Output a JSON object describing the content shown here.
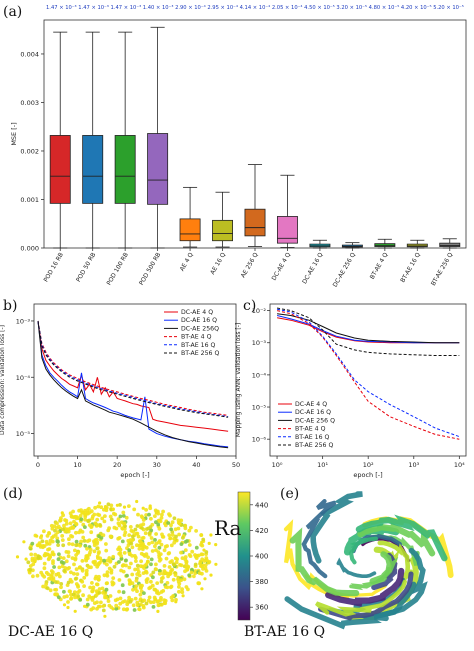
{
  "figure": {
    "panel_labels": [
      "(a)",
      "b)",
      "c)",
      "(d)",
      "(e)"
    ],
    "ra_label": "Ra",
    "d_caption": "DC-AE 16 Q",
    "e_caption": "BT-AE 16 Q"
  },
  "colors": {
    "pod": [
      "#d62728",
      "#1f77b4",
      "#2ca02c",
      "#9467bd"
    ],
    "ae": [
      "#ff7f0e",
      "#bcbd22",
      "#d2691e",
      "#e377c2"
    ],
    "dc": [
      "#17becf",
      "#1f77b4",
      "#2ca02c"
    ],
    "bt": [
      "#bcbd22",
      "#7f7f7f",
      "#d62728"
    ]
  },
  "chart_data": [
    {
      "type": "box",
      "panel": "a",
      "ylabel": "MSE [-]",
      "ylim": [
        0,
        0.0047
      ],
      "yticks": [
        "0.000",
        "0.001",
        "0.002",
        "0.003",
        "0.004"
      ],
      "ytick_values": [
        0,
        0.001,
        0.002,
        0.003,
        0.004
      ],
      "top_annotations": [
        "1.47 × 10⁻³",
        "1.47 × 10⁻³",
        "1.47 × 10⁻³",
        "1.40 × 10⁻³",
        "2.90 × 10⁻⁴",
        "2.95 × 10⁻⁴",
        "4.14 × 10⁻⁴",
        "2.05 × 10⁻⁴",
        "4.50 × 10⁻⁵",
        "3.20 × 10⁻⁵",
        "4.80 × 10⁻⁵",
        "4.20 × 10⁻⁵",
        "5.20 × 10⁻⁵"
      ],
      "categories": [
        "POD 16 RB",
        "POD 50 RB",
        "POD 100 RB",
        "POD 500 RB",
        "AE 4 Q",
        "AE 16 Q",
        "AE 256 Q",
        "DC-AE 4 Q",
        "DC-AE 16 Q",
        "DC-AE 256 Q",
        "BT-AE 4 Q",
        "BT-AE 16 Q",
        "BT-AE 256 Q"
      ],
      "boxes": [
        {
          "min": 0.0,
          "q1": 0.00092,
          "median": 0.00148,
          "q3": 0.00232,
          "max": 0.00445
        },
        {
          "min": 0.0,
          "q1": 0.00092,
          "median": 0.00148,
          "q3": 0.00232,
          "max": 0.00445
        },
        {
          "min": 0.0,
          "q1": 0.00092,
          "median": 0.00148,
          "q3": 0.00232,
          "max": 0.00445
        },
        {
          "min": 0.0,
          "q1": 0.0009,
          "median": 0.0014,
          "q3": 0.00236,
          "max": 0.00455
        },
        {
          "min": 2e-05,
          "q1": 0.00015,
          "median": 0.00029,
          "q3": 0.0006,
          "max": 0.00125
        },
        {
          "min": 2e-05,
          "q1": 0.00015,
          "median": 0.0003,
          "q3": 0.00057,
          "max": 0.00115
        },
        {
          "min": 3e-05,
          "q1": 0.00025,
          "median": 0.00042,
          "q3": 0.0008,
          "max": 0.00172
        },
        {
          "min": 1e-05,
          "q1": 0.0001,
          "median": 0.0002,
          "q3": 0.00065,
          "max": 0.0015
        },
        {
          "min": 0.0,
          "q1": 2.5e-05,
          "median": 4.5e-05,
          "q3": 8e-05,
          "max": 0.00016
        },
        {
          "min": 0.0,
          "q1": 2e-05,
          "median": 3.2e-05,
          "q3": 6e-05,
          "max": 0.00011
        },
        {
          "min": 0.0,
          "q1": 3e-05,
          "median": 4.8e-05,
          "q3": 9e-05,
          "max": 0.00018
        },
        {
          "min": 0.0,
          "q1": 2.5e-05,
          "median": 4.2e-05,
          "q3": 8e-05,
          "max": 0.00016
        },
        {
          "min": 0.0,
          "q1": 3e-05,
          "median": 5.2e-05,
          "q3": 0.0001,
          "max": 0.00019
        }
      ]
    },
    {
      "type": "line",
      "panel": "b",
      "xlabel": "epoch [-]",
      "ylabel": "Data compression: validation loss [-]",
      "xlim": [
        -1,
        50
      ],
      "ylim_log": [
        4e-06,
        0.002
      ],
      "xticks": [
        "0",
        "10",
        "20",
        "30",
        "40",
        "50"
      ],
      "xtick_values": [
        0,
        10,
        20,
        30,
        40,
        50
      ],
      "yticks": [
        "10⁻⁵",
        "10⁻⁴",
        "10⁻³"
      ],
      "ytick_values": [
        1e-05,
        0.0001,
        0.001
      ],
      "series": [
        {
          "name": "DC-AE 4 Q",
          "color": "#e8000b",
          "dash": false,
          "x": [
            0,
            1,
            2,
            3,
            4,
            5,
            6,
            7,
            8,
            9,
            10,
            11,
            12,
            13,
            14,
            15,
            16,
            17,
            18,
            19,
            20,
            21,
            22,
            23,
            24,
            25,
            26,
            27,
            28,
            29,
            30,
            32,
            34,
            36,
            38,
            40,
            42,
            44,
            46,
            48
          ],
          "y": [
            0.001,
            0.00032,
            0.0002,
            0.00016,
            0.00013,
            0.00011,
            9.5e-05,
            8.5e-05,
            7.5e-05,
            7e-05,
            6.5e-05,
            0.00011,
            6e-05,
            7.5e-05,
            5.5e-05,
            0.0001,
            5e-05,
            6.5e-05,
            4.5e-05,
            5.5e-05,
            4.2e-05,
            4e-05,
            3.8e-05,
            3.6e-05,
            3.4e-05,
            3.3e-05,
            3.1e-05,
            3e-05,
            2.9e-05,
            1.8e-05,
            1.7e-05,
            1.6e-05,
            1.5e-05,
            1.4e-05,
            1.35e-05,
            1.3e-05,
            1.25e-05,
            1.2e-05,
            1.15e-05,
            1.1e-05
          ]
        },
        {
          "name": "DC-AE 16 Q",
          "color": "#0a2aff",
          "dash": false,
          "x": [
            0,
            1,
            2,
            3,
            4,
            5,
            6,
            7,
            8,
            9,
            10,
            11,
            12,
            13,
            14,
            15,
            16,
            17,
            18,
            19,
            20,
            22,
            24,
            26,
            27,
            28,
            30,
            32,
            34,
            36,
            38,
            40,
            42,
            44,
            46,
            48
          ],
          "y": [
            0.001,
            0.00025,
            0.00016,
            0.00012,
            0.0001,
            8.5e-05,
            7.2e-05,
            6.2e-05,
            5.5e-05,
            5e-05,
            4.5e-05,
            0.00012,
            4.2e-05,
            3.8e-05,
            3.5e-05,
            3.3e-05,
            3.1e-05,
            2.9e-05,
            2.7e-05,
            2.5e-05,
            2.4e-05,
            2.1e-05,
            1.9e-05,
            1.75e-05,
            4.5e-05,
            1.2e-05,
            1e-05,
            9e-06,
            8.3e-06,
            7.8e-06,
            7.3e-06,
            7e-06,
            6.6e-06,
            6.3e-06,
            6e-06,
            5.8e-06
          ]
        },
        {
          "name": "DC-AE 256Q",
          "color": "#111111",
          "dash": false,
          "x": [
            0,
            1,
            2,
            3,
            4,
            5,
            6,
            7,
            8,
            9,
            10,
            11,
            12,
            13,
            14,
            15,
            16,
            17,
            18,
            19,
            20,
            22,
            24,
            26,
            28,
            30,
            32,
            34,
            36,
            38,
            40,
            42,
            44,
            46,
            48
          ],
          "y": [
            0.001,
            0.00022,
            0.00014,
            0.00011,
            9e-05,
            7.6e-05,
            6.5e-05,
            5.7e-05,
            5.1e-05,
            4.6e-05,
            4.2e-05,
            6e-05,
            3.8e-05,
            3.5e-05,
            3.2e-05,
            3e-05,
            2.8e-05,
            2.6e-05,
            2.4e-05,
            2.3e-05,
            2.2e-05,
            2e-05,
            1.8e-05,
            1.55e-05,
            1.3e-05,
            1.1e-05,
            9.5e-06,
            8.5e-06,
            7.8e-06,
            7.2e-06,
            6.8e-06,
            6.4e-06,
            6.1e-06,
            5.8e-06,
            5.6e-06
          ]
        },
        {
          "name": "BT-AE 4 Q",
          "color": "#e8000b",
          "dash": true,
          "x": [
            0,
            1,
            2,
            3,
            4,
            6,
            8,
            10,
            12,
            14,
            16,
            18,
            20,
            22,
            24,
            26,
            28,
            30,
            32,
            34,
            36,
            38,
            40,
            42,
            44,
            46,
            48
          ],
          "y": [
            0.001,
            0.0004,
            0.00028,
            0.00022,
            0.00018,
            0.000135,
            0.00011,
            9.5e-05,
            8.3e-05,
            7.4e-05,
            6.6e-05,
            6e-05,
            5.5e-05,
            5e-05,
            4.6e-05,
            4.2e-05,
            3.9e-05,
            3.6e-05,
            3.3e-05,
            3.1e-05,
            2.9e-05,
            2.7e-05,
            2.55e-05,
            2.4e-05,
            2.3e-05,
            2.2e-05,
            2.1e-05
          ]
        },
        {
          "name": "BT-AE 16 Q",
          "color": "#0a2aff",
          "dash": true,
          "x": [
            0,
            1,
            2,
            3,
            4,
            6,
            8,
            10,
            12,
            14,
            16,
            18,
            20,
            22,
            24,
            26,
            28,
            30,
            32,
            34,
            36,
            38,
            40,
            42,
            44,
            46,
            48
          ],
          "y": [
            0.001,
            0.00038,
            0.00026,
            0.00021,
            0.00017,
            0.00013,
            0.000105,
            9e-05,
            7.9e-05,
            7e-05,
            6.3e-05,
            5.7e-05,
            5.2e-05,
            4.8e-05,
            4.4e-05,
            4e-05,
            3.7e-05,
            3.4e-05,
            3.15e-05,
            2.95e-05,
            2.75e-05,
            2.6e-05,
            2.45e-05,
            2.3e-05,
            2.2e-05,
            2.1e-05,
            2e-05
          ]
        },
        {
          "name": "BT-AE 256 Q",
          "color": "#111111",
          "dash": true,
          "x": [
            0,
            1,
            2,
            3,
            4,
            6,
            8,
            10,
            12,
            14,
            16,
            18,
            20,
            22,
            24,
            26,
            28,
            30,
            32,
            34,
            36,
            38,
            40,
            42,
            44,
            46,
            48
          ],
          "y": [
            0.001,
            0.00036,
            0.00025,
            0.0002,
            0.000165,
            0.000125,
            0.0001,
            8.6e-05,
            7.6e-05,
            6.7e-05,
            6e-05,
            5.5e-05,
            5e-05,
            4.6e-05,
            4.2e-05,
            3.85e-05,
            3.55e-05,
            3.3e-05,
            3.05e-05,
            2.85e-05,
            2.65e-05,
            2.5e-05,
            2.35e-05,
            2.25e-05,
            2.15e-05,
            2.05e-05,
            1.95e-05
          ]
        }
      ]
    },
    {
      "type": "line",
      "panel": "c",
      "xscale": "log",
      "xlabel": "epoch [-]",
      "ylabel": "Mapping using ANN: validation loss [-]",
      "xlim_log": [
        0.7,
        14000
      ],
      "ylim_log": [
        3e-07,
        0.016
      ],
      "xticks": [
        "10⁰",
        "10¹",
        "10²",
        "10³",
        "10⁴"
      ],
      "xtick_values": [
        1,
        10,
        100,
        1000,
        10000
      ],
      "yticks": [
        "10⁻⁶",
        "10⁻⁵",
        "10⁻⁴",
        "10⁻³",
        "10⁻²"
      ],
      "ytick_values": [
        1e-06,
        1e-05,
        0.0001,
        0.001,
        0.01
      ],
      "series": [
        {
          "name": "DC-AE 4 Q",
          "color": "#e8000b",
          "dash": false,
          "x": [
            1,
            2,
            5,
            10,
            20,
            50,
            100,
            300,
            1000,
            3000,
            10000
          ],
          "y": [
            0.006,
            0.005,
            0.0035,
            0.0022,
            0.0015,
            0.00115,
            0.00105,
            0.001,
            0.001,
            0.001,
            0.001
          ]
        },
        {
          "name": "DC-AE 16 Q",
          "color": "#0a2aff",
          "dash": false,
          "x": [
            1,
            2,
            5,
            10,
            20,
            50,
            100,
            300,
            1000,
            3000,
            10000
          ],
          "y": [
            0.007,
            0.0055,
            0.0038,
            0.0024,
            0.0016,
            0.0012,
            0.0011,
            0.00105,
            0.001,
            0.001,
            0.001
          ]
        },
        {
          "name": "DC-AE 256 Q",
          "color": "#111111",
          "dash": false,
          "x": [
            1,
            2,
            5,
            10,
            20,
            50,
            100,
            300,
            1000,
            3000,
            10000
          ],
          "y": [
            0.008,
            0.007,
            0.005,
            0.0032,
            0.002,
            0.0014,
            0.0012,
            0.0011,
            0.00105,
            0.001,
            0.001
          ]
        },
        {
          "name": "BT-AE 4 Q",
          "color": "#e8000b",
          "dash": true,
          "x": [
            1,
            2,
            5,
            10,
            20,
            50,
            100,
            300,
            1000,
            3000,
            10000
          ],
          "y": [
            0.01,
            0.008,
            0.004,
            0.0015,
            0.0004,
            6e-05,
            1.5e-05,
            5e-06,
            2.5e-06,
            1.4e-06,
            1e-06
          ]
        },
        {
          "name": "BT-AE 16 Q",
          "color": "#0a2aff",
          "dash": true,
          "x": [
            1,
            2,
            5,
            10,
            20,
            50,
            100,
            300,
            1000,
            3000,
            10000
          ],
          "y": [
            0.011,
            0.009,
            0.0045,
            0.0016,
            0.00045,
            7e-05,
            3e-05,
            1.2e-05,
            5e-06,
            2.2e-06,
            1.2e-06
          ]
        },
        {
          "name": "BT-AE 256 Q",
          "color": "#111111",
          "dash": true,
          "x": [
            1,
            2,
            5,
            10,
            20,
            50,
            100,
            300,
            1000,
            3000,
            10000
          ],
          "y": [
            0.012,
            0.01,
            0.006,
            0.0025,
            0.0009,
            0.0006,
            0.0005,
            0.00045,
            0.00042,
            0.0004,
            0.0004
          ]
        }
      ]
    },
    {
      "type": "heatmap",
      "panel": "colorbar",
      "label": "Ra",
      "ticks": [
        "360",
        "380",
        "400",
        "420",
        "440"
      ],
      "tick_values": [
        360,
        380,
        400,
        420,
        440
      ],
      "range": [
        350,
        450
      ]
    }
  ]
}
